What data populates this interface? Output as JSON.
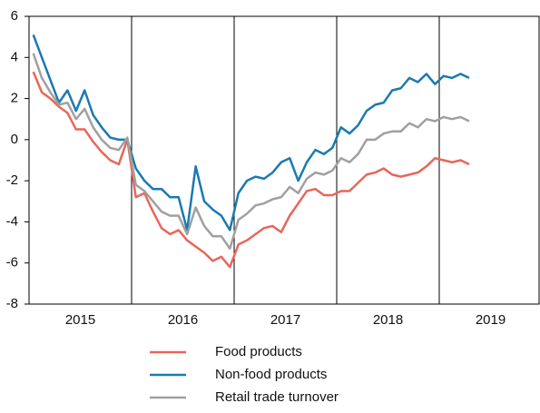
{
  "chart_data": {
    "type": "line",
    "year_labels": [
      "2015",
      "2016",
      "2017",
      "2018",
      "2019"
    ],
    "ylim": [
      -8,
      6
    ],
    "yticks": [
      -8,
      -6,
      -4,
      -2,
      0,
      2,
      4,
      6
    ],
    "series": [
      {
        "name": "Food products",
        "color": "#e8665a",
        "values": [
          3.3,
          2.3,
          2.0,
          1.6,
          1.3,
          0.5,
          0.5,
          -0.1,
          -0.6,
          -1.0,
          -1.2,
          0.0,
          -2.8,
          -2.6,
          -3.5,
          -4.3,
          -4.6,
          -4.4,
          -4.9,
          -5.2,
          -5.5,
          -5.9,
          -5.7,
          -6.2,
          -5.1,
          -4.9,
          -4.6,
          -4.3,
          -4.2,
          -4.5,
          -3.7,
          -3.1,
          -2.5,
          -2.4,
          -2.7,
          -2.7,
          -2.5,
          -2.5,
          -2.1,
          -1.7,
          -1.6,
          -1.4,
          -1.7,
          -1.8,
          -1.7,
          -1.6,
          -1.3,
          -0.9,
          -1.0,
          -1.1,
          -1.0,
          -1.2
        ]
      },
      {
        "name": "Non-food products",
        "color": "#1a7ab0",
        "values": [
          5.1,
          4.0,
          2.9,
          1.8,
          2.4,
          1.4,
          2.4,
          1.2,
          0.6,
          0.1,
          0.0,
          0.0,
          -1.4,
          -2.0,
          -2.4,
          -2.4,
          -2.8,
          -2.8,
          -4.4,
          -1.3,
          -3.0,
          -3.4,
          -3.7,
          -4.4,
          -2.6,
          -2.0,
          -1.8,
          -1.9,
          -1.6,
          -1.1,
          -0.9,
          -2.0,
          -1.1,
          -0.5,
          -0.7,
          -0.4,
          0.6,
          0.3,
          0.7,
          1.4,
          1.7,
          1.8,
          2.4,
          2.5,
          3.0,
          2.8,
          3.2,
          2.7,
          3.1,
          3.0,
          3.2,
          3.0
        ]
      },
      {
        "name": "Retail trade turnover",
        "color": "#a0a0a0",
        "values": [
          4.2,
          3.0,
          2.3,
          1.7,
          1.8,
          1.0,
          1.5,
          0.6,
          0.0,
          -0.4,
          -0.5,
          0.1,
          -2.2,
          -2.5,
          -3.0,
          -3.5,
          -3.7,
          -3.7,
          -4.6,
          -3.3,
          -4.2,
          -4.7,
          -4.7,
          -5.3,
          -3.9,
          -3.6,
          -3.2,
          -3.1,
          -2.9,
          -2.8,
          -2.3,
          -2.6,
          -1.9,
          -1.6,
          -1.7,
          -1.5,
          -0.9,
          -1.1,
          -0.7,
          0.0,
          0.0,
          0.3,
          0.4,
          0.4,
          0.8,
          0.6,
          1.0,
          0.9,
          1.1,
          1.0,
          1.1,
          0.9
        ]
      }
    ]
  }
}
